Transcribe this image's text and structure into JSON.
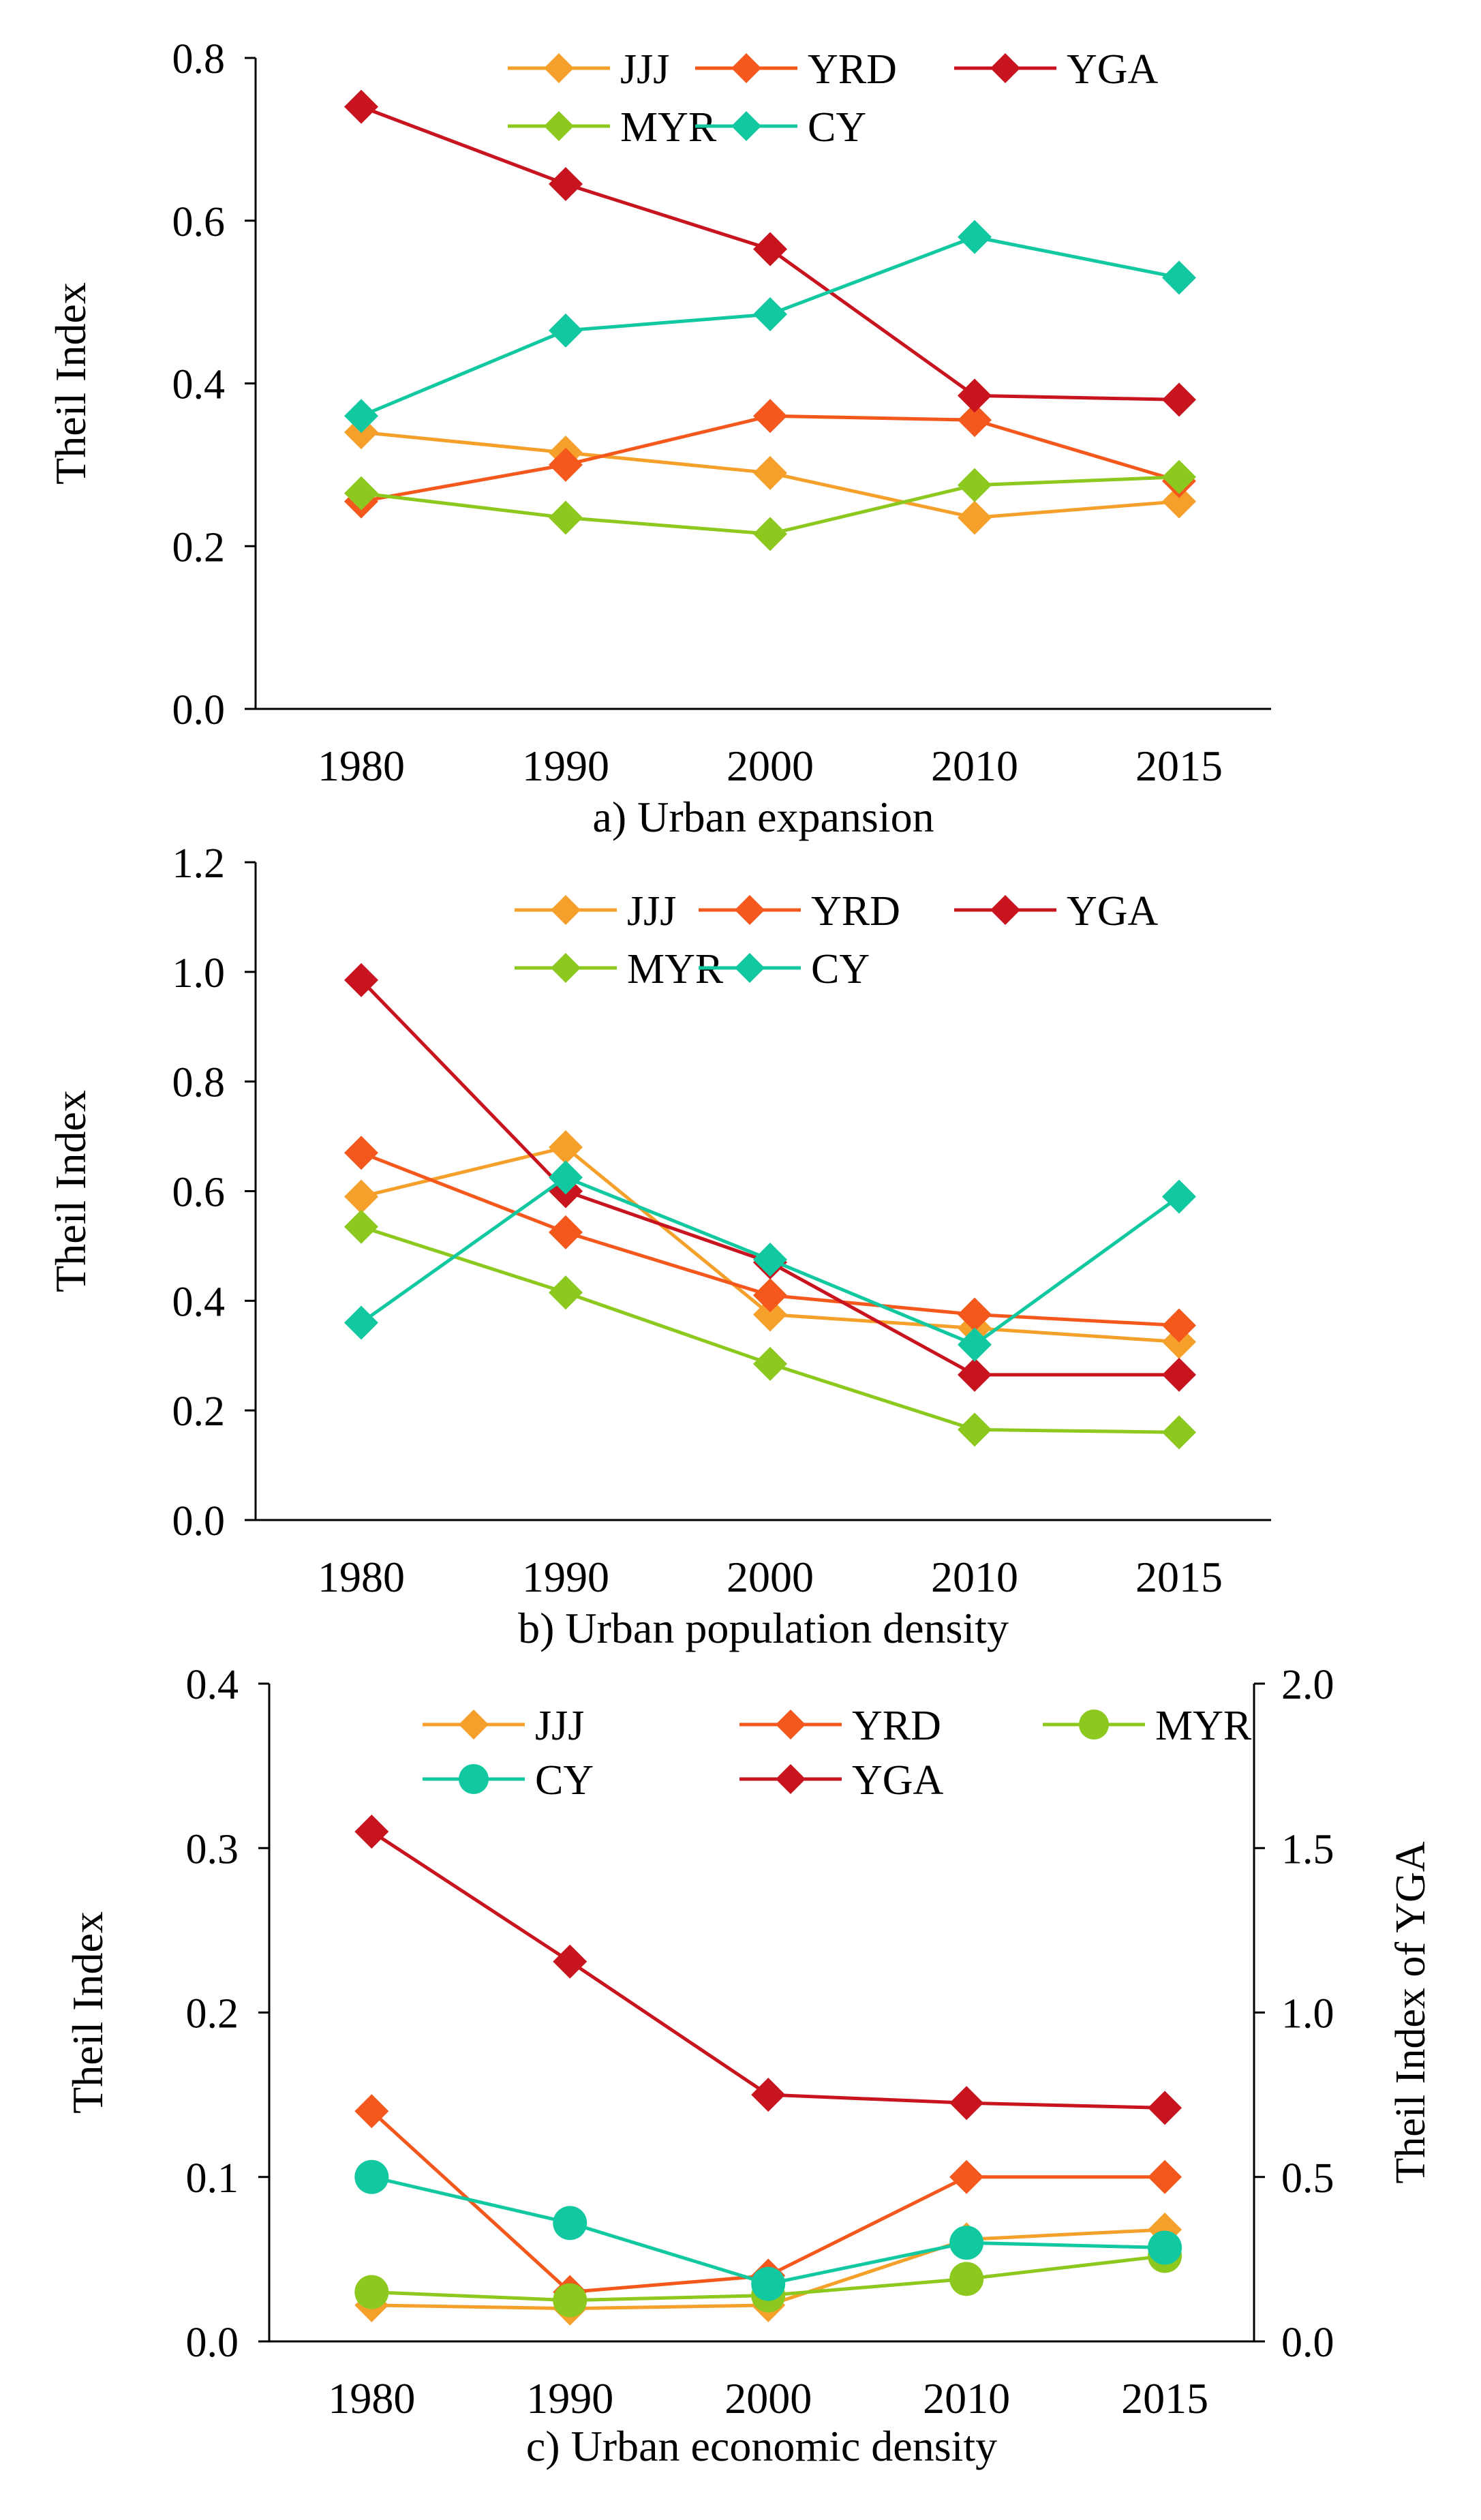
{
  "chart_data": [
    {
      "id": "a",
      "type": "line",
      "caption": "a) Urban expansion",
      "ylabel": "Theil Index",
      "ylim": [
        0,
        0.8
      ],
      "yticks": [
        "0.0",
        "0.2",
        "0.4",
        "0.6",
        "0.8"
      ],
      "ytick_values": [
        0,
        0.2,
        0.4,
        0.6,
        0.8
      ],
      "categories": [
        "1980",
        "1990",
        "2000",
        "2010",
        "2015"
      ],
      "legend_rows": [
        [
          "JJJ",
          "YRD",
          "YGA"
        ],
        [
          "MYR",
          "CY"
        ]
      ],
      "series": [
        {
          "name": "JJJ",
          "color": "#f5a02a",
          "marker": "diamond",
          "values": [
            0.34,
            0.315,
            0.29,
            0.235,
            0.255
          ]
        },
        {
          "name": "YRD",
          "color": "#f4581c",
          "marker": "diamond",
          "values": [
            0.255,
            0.3,
            0.36,
            0.355,
            0.28
          ]
        },
        {
          "name": "YGA",
          "color": "#c8141e",
          "marker": "diamond",
          "values": [
            0.74,
            0.645,
            0.565,
            0.385,
            0.38
          ]
        },
        {
          "name": "MYR",
          "color": "#8cc81e",
          "marker": "diamond",
          "values": [
            0.265,
            0.235,
            0.215,
            0.275,
            0.285
          ]
        },
        {
          "name": "CY",
          "color": "#12c8a0",
          "marker": "diamond",
          "values": [
            0.36,
            0.465,
            0.485,
            0.58,
            0.53
          ]
        }
      ]
    },
    {
      "id": "b",
      "type": "line",
      "caption": "b) Urban population density",
      "ylabel": "Theil Index",
      "ylim": [
        0,
        1.2
      ],
      "yticks": [
        "0.0",
        "0.2",
        "0.4",
        "0.6",
        "0.8",
        "1.0",
        "1.2"
      ],
      "ytick_values": [
        0,
        0.2,
        0.4,
        0.6,
        0.8,
        1.0,
        1.2
      ],
      "categories": [
        "1980",
        "1990",
        "2000",
        "2010",
        "2015"
      ],
      "legend_rows": [
        [
          "JJJ",
          "YRD",
          "YGA"
        ],
        [
          "MYR",
          "CY"
        ]
      ],
      "series": [
        {
          "name": "JJJ",
          "color": "#f5a02a",
          "marker": "diamond",
          "values": [
            0.59,
            0.68,
            0.375,
            0.35,
            0.325
          ]
        },
        {
          "name": "YRD",
          "color": "#f4581c",
          "marker": "diamond",
          "values": [
            0.67,
            0.525,
            0.41,
            0.375,
            0.355
          ]
        },
        {
          "name": "YGA",
          "color": "#c8141e",
          "marker": "diamond",
          "values": [
            0.985,
            0.6,
            0.47,
            0.265,
            0.265
          ]
        },
        {
          "name": "MYR",
          "color": "#8cc81e",
          "marker": "diamond",
          "values": [
            0.535,
            0.415,
            0.285,
            0.165,
            0.16
          ]
        },
        {
          "name": "CY",
          "color": "#12c8a0",
          "marker": "diamond",
          "values": [
            0.36,
            0.625,
            0.475,
            0.32,
            0.59
          ]
        }
      ]
    },
    {
      "id": "c",
      "type": "line",
      "caption": "c) Urban economic density",
      "ylabel": "Theil Index",
      "ylabel_right": "Theil Index of YGA",
      "ylim": [
        0,
        0.4
      ],
      "ylim_right": [
        0,
        2.0
      ],
      "yticks": [
        "0.0",
        "0.1",
        "0.2",
        "0.3",
        "0.4"
      ],
      "ytick_values": [
        0,
        0.1,
        0.2,
        0.3,
        0.4
      ],
      "yticks_right": [
        "0.0",
        "0.5",
        "1.0",
        "1.5",
        "2.0"
      ],
      "ytick_values_right": [
        0,
        0.5,
        1.0,
        1.5,
        2.0
      ],
      "categories": [
        "1980",
        "1990",
        "2000",
        "2010",
        "2015"
      ],
      "legend_rows": [
        [
          "JJJ",
          "YRD",
          "MYR"
        ],
        [
          "CY",
          "YGA"
        ]
      ],
      "series": [
        {
          "name": "JJJ",
          "color": "#f5a02a",
          "marker": "diamond",
          "axis": "left",
          "values": [
            0.022,
            0.02,
            0.022,
            0.062,
            0.068
          ]
        },
        {
          "name": "YRD",
          "color": "#f4581c",
          "marker": "diamond",
          "axis": "left",
          "values": [
            0.14,
            0.03,
            0.04,
            0.1,
            0.1
          ]
        },
        {
          "name": "MYR",
          "color": "#8cc81e",
          "marker": "circle",
          "axis": "left",
          "values": [
            0.03,
            0.025,
            0.028,
            0.038,
            0.052
          ]
        },
        {
          "name": "CY",
          "color": "#12c8a0",
          "marker": "circle",
          "axis": "left",
          "values": [
            0.1,
            0.072,
            0.035,
            0.06,
            0.057
          ]
        },
        {
          "name": "YGA",
          "color": "#c8141e",
          "marker": "diamond",
          "axis": "right",
          "values": [
            1.55,
            1.155,
            0.75,
            0.725,
            0.71
          ]
        }
      ]
    }
  ]
}
